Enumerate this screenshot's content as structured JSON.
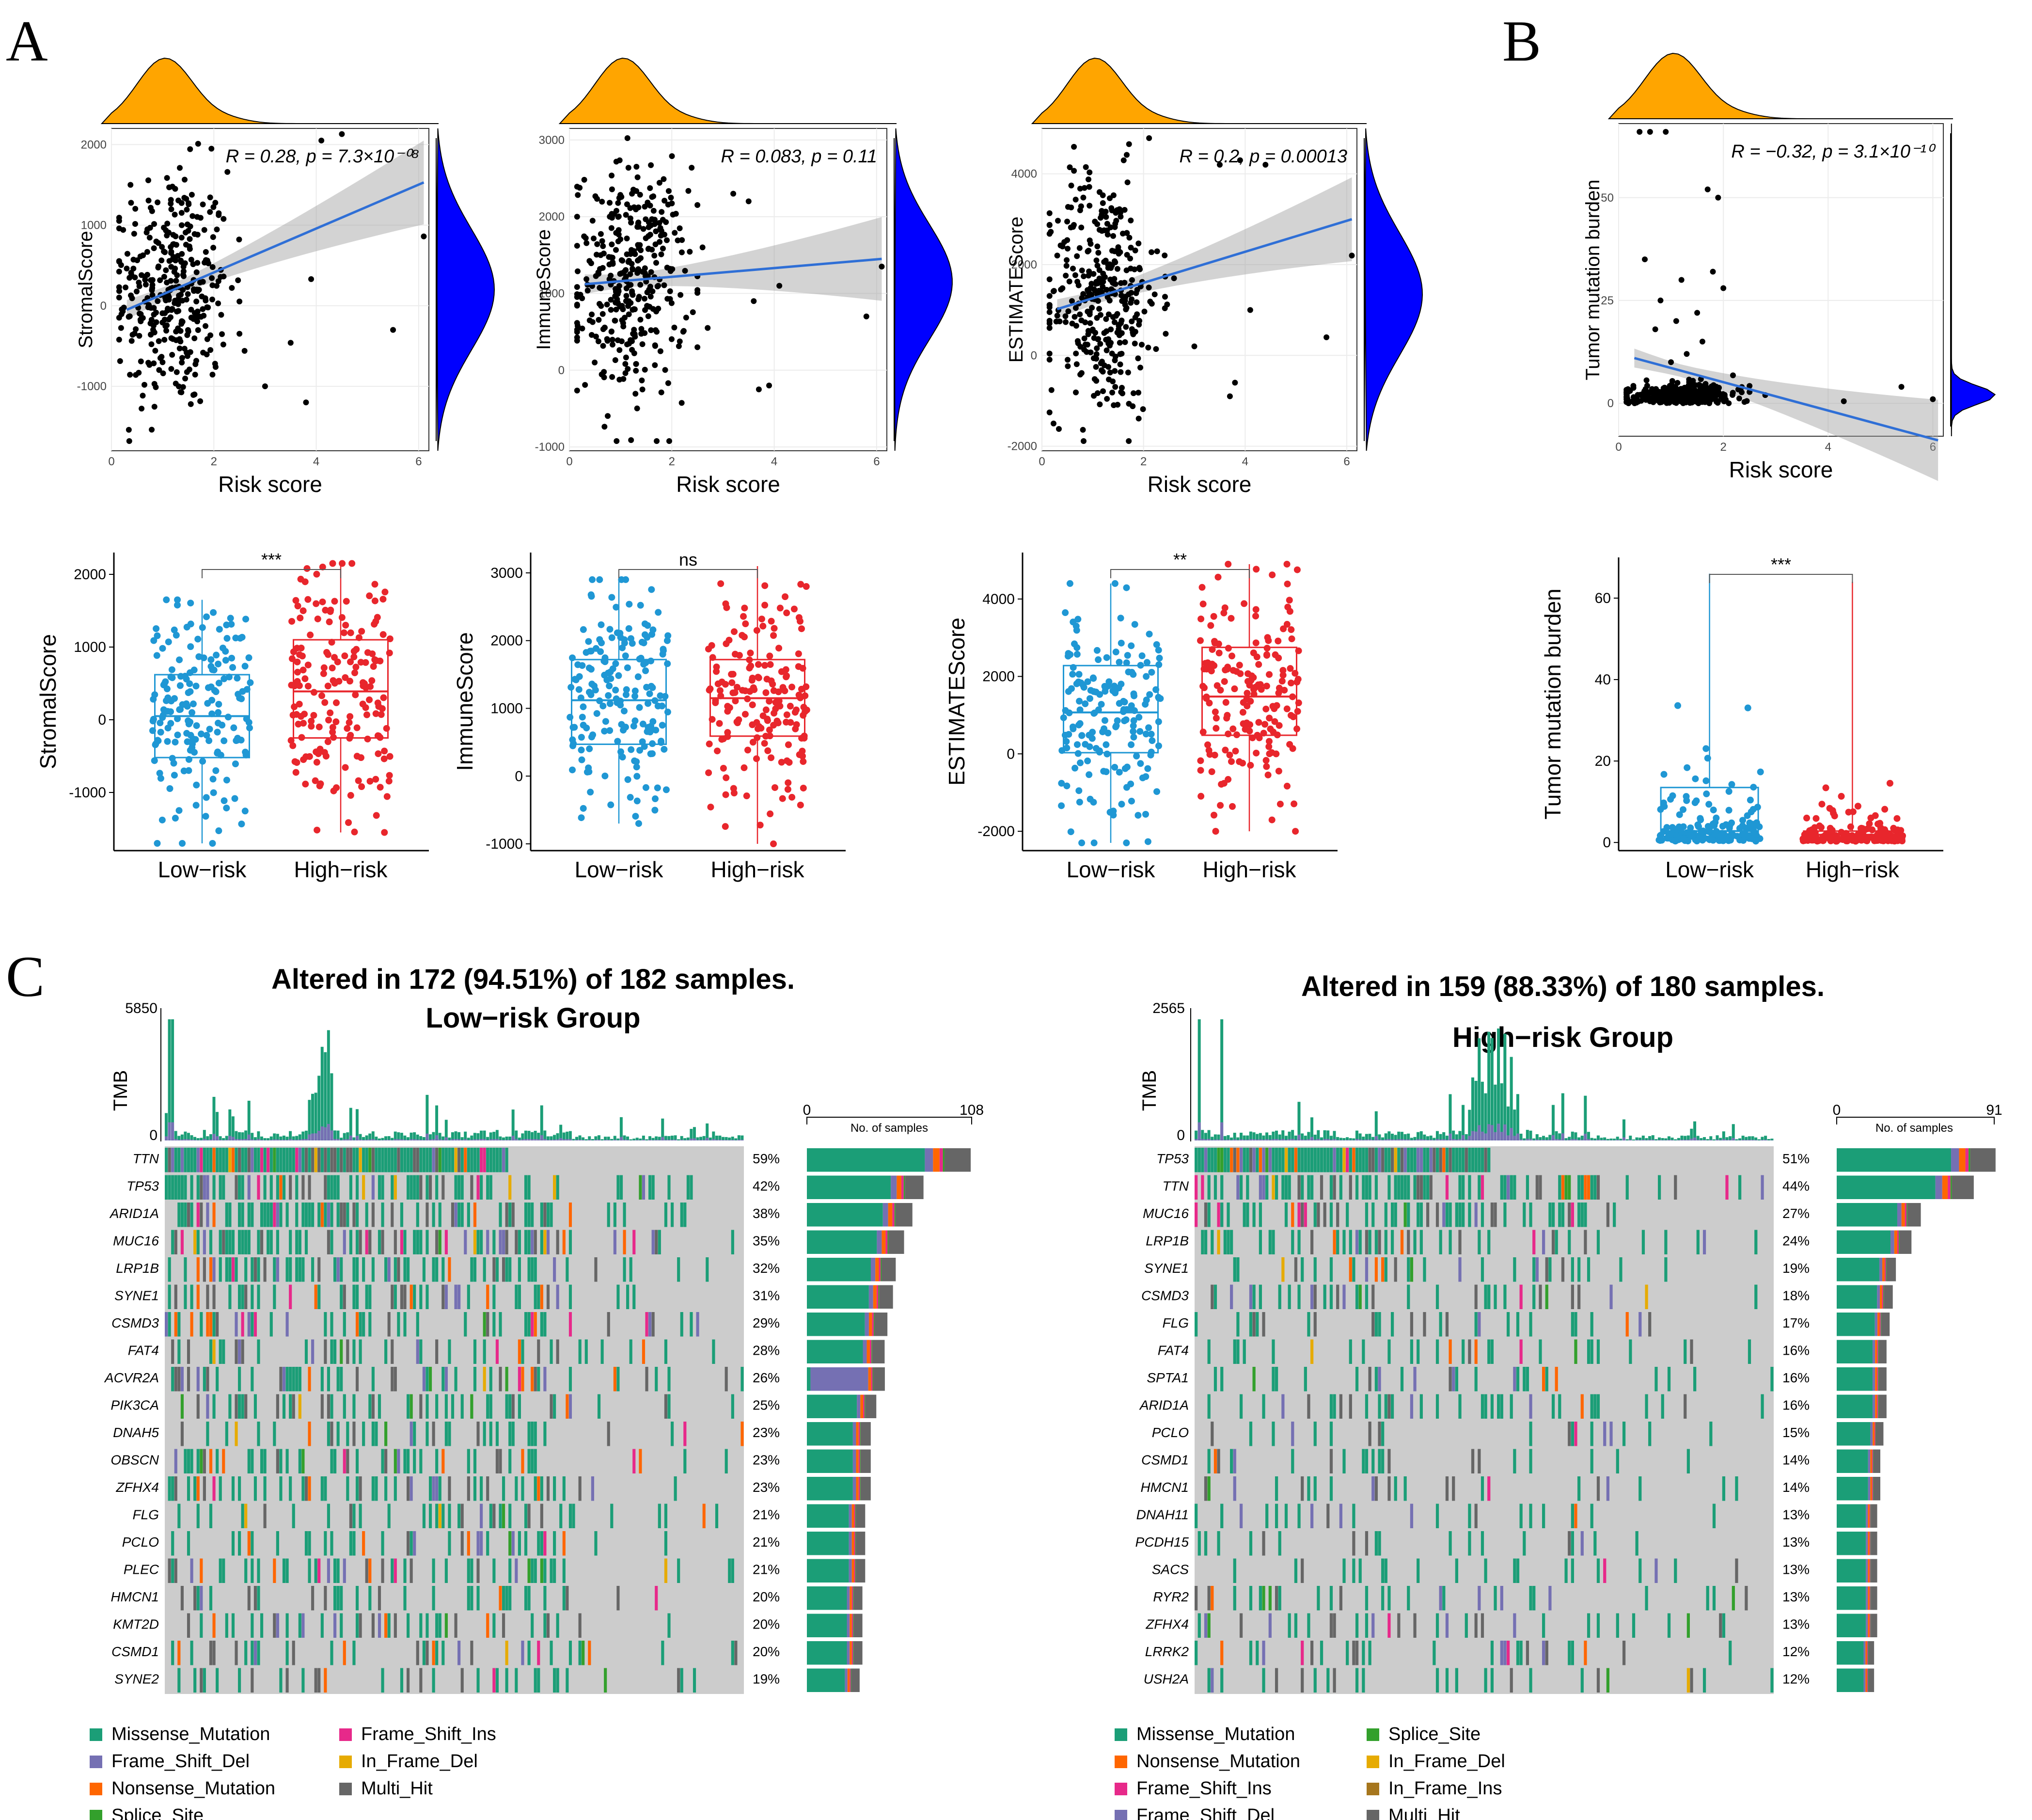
{
  "panel_labels": {
    "a": "A",
    "b": "B",
    "c": "C"
  },
  "scatter_axis_xlabel": "Risk score",
  "box_categories": [
    "Low−risk",
    "High−risk"
  ],
  "oncoplot": {
    "low_title": "Altered in 172 (94.51%) of 182 samples.",
    "low_subtitle": "Low−risk Group",
    "high_title": "Altered in 159 (88.33%) of 180 samples.",
    "high_subtitle": "High−risk  Group",
    "tmb_label": "TMB",
    "samples_label": "No. of samples",
    "low_tmb_max": "5850",
    "high_tmb_max": "2565",
    "zero": "0",
    "low_samples_max": "108",
    "high_samples_max": "91"
  },
  "colors": {
    "Missense_Mutation": "#1b9e77",
    "Frame_Shift_Del": "#7570b3",
    "Nonsense_Mutation": "#ff6600",
    "Splice_Site": "#33a02c",
    "Frame_Shift_Ins": "#e7298a",
    "In_Frame_Del": "#e6ab02",
    "In_Frame_Ins": "#a6761d",
    "Multi_Hit": "#666666",
    "low": "#1f97d4",
    "high": "#e8262c",
    "density_top": "#ffa500",
    "density_right": "#0000ff",
    "fit": "#2f6fd6"
  },
  "legend_low": [
    "Missense_Mutation",
    "Frame_Shift_Ins",
    "Frame_Shift_Del",
    "In_Frame_Del",
    "Nonsense_Mutation",
    "Multi_Hit",
    "Splice_Site"
  ],
  "legend_high": [
    "Missense_Mutation",
    "Splice_Site",
    "Nonsense_Mutation",
    "In_Frame_Del",
    "Frame_Shift_Ins",
    "In_Frame_Ins",
    "Frame_Shift_Del",
    "Multi_Hit"
  ],
  "chart_data": [
    {
      "type": "scatter",
      "id": "sc_stromal",
      "title": "",
      "xlabel": "Risk score",
      "ylabel": "StromalScore",
      "xlim": [
        0,
        6.2
      ],
      "ylim": [
        -1800,
        2200
      ],
      "xticks": [
        0,
        2,
        4,
        6
      ],
      "yticks": [
        -1000,
        0,
        1000,
        2000
      ],
      "fit_line": {
        "x": [
          0.3,
          6.1
        ],
        "y": [
          -50,
          1530
        ]
      },
      "annotation": "R = 0.28, p = 7.3×10⁻⁰⁸",
      "cluster": {
        "x_mean": 1.2,
        "x_sd": 0.55,
        "y_mean": 200,
        "y_sd": 750,
        "n": 360
      },
      "outliers": [
        [
          2.6,
          -560
        ],
        [
          3.5,
          -460
        ],
        [
          3.9,
          330
        ],
        [
          4.1,
          2050
        ],
        [
          4.5,
          2130
        ],
        [
          5.5,
          -300
        ],
        [
          6.1,
          860
        ],
        [
          3.0,
          -1000
        ],
        [
          3.8,
          -1200
        ]
      ]
    },
    {
      "type": "scatter",
      "id": "sc_immune",
      "title": "",
      "xlabel": "Risk score",
      "ylabel": "ImmuneScore",
      "xlim": [
        0,
        6.2
      ],
      "ylim": [
        -1050,
        3150
      ],
      "xticks": [
        0,
        2,
        4,
        6
      ],
      "yticks": [
        -1000,
        0,
        1000,
        2000,
        3000
      ],
      "fit_line": {
        "x": [
          0.3,
          6.1
        ],
        "y": [
          1120,
          1450
        ]
      },
      "annotation": "R = 0.083, p = 0.11",
      "cluster": {
        "x_mean": 1.2,
        "x_sd": 0.55,
        "y_mean": 1150,
        "y_sd": 750,
        "n": 360
      },
      "outliers": [
        [
          2.6,
          1600
        ],
        [
          3.2,
          2300
        ],
        [
          3.5,
          2200
        ],
        [
          3.6,
          900
        ],
        [
          3.7,
          -250
        ],
        [
          3.9,
          -200
        ],
        [
          4.1,
          1100
        ],
        [
          5.8,
          700
        ],
        [
          6.1,
          1350
        ],
        [
          2.7,
          550
        ]
      ]
    },
    {
      "type": "scatter",
      "id": "sc_estimate",
      "title": "",
      "xlabel": "Risk score",
      "ylabel": "ESTIMATEScore",
      "xlim": [
        0,
        6.2
      ],
      "ylim": [
        -2100,
        5000
      ],
      "xticks": [
        0,
        2,
        4,
        6
      ],
      "yticks": [
        -2000,
        0,
        2000,
        4000
      ],
      "fit_line": {
        "x": [
          0.3,
          6.1
        ],
        "y": [
          1020,
          3000
        ]
      },
      "annotation": "R = 0.2, p = 0.00013",
      "cluster": {
        "x_mean": 1.2,
        "x_sd": 0.55,
        "y_mean": 1350,
        "y_sd": 1350,
        "n": 360
      },
      "outliers": [
        [
          2.6,
          1700
        ],
        [
          3.0,
          200
        ],
        [
          3.5,
          4200
        ],
        [
          3.7,
          -900
        ],
        [
          3.9,
          4300
        ],
        [
          4.1,
          1000
        ],
        [
          4.4,
          4200
        ],
        [
          5.6,
          400
        ],
        [
          6.1,
          2200
        ],
        [
          3.8,
          -600
        ]
      ]
    },
    {
      "type": "scatter",
      "id": "sc_tmb",
      "title": "",
      "xlabel": "Risk score",
      "ylabel": "Tumor mutation burden",
      "xlim": [
        0,
        6.2
      ],
      "ylim": [
        -8,
        68
      ],
      "xticks": [
        0,
        2,
        4,
        6
      ],
      "yticks": [
        0,
        25,
        50
      ],
      "fit_line": {
        "x": [
          0.3,
          6.1
        ],
        "y": [
          11,
          -9
        ]
      },
      "annotation": "R = −0.32, p = 3.1×10⁻¹⁰",
      "cluster": {
        "x_mean": 1.2,
        "x_sd": 0.5,
        "y_mean": 2,
        "y_sd": 1.5,
        "n": 320
      },
      "outliers": [
        [
          0.4,
          66
        ],
        [
          0.6,
          66
        ],
        [
          0.9,
          66
        ],
        [
          1.7,
          52
        ],
        [
          1.9,
          50
        ],
        [
          1.8,
          32
        ],
        [
          1.2,
          30
        ],
        [
          0.5,
          35
        ],
        [
          2.0,
          28
        ],
        [
          1.5,
          22
        ],
        [
          0.8,
          25
        ],
        [
          1.1,
          20
        ],
        [
          1.6,
          15
        ],
        [
          0.7,
          18
        ],
        [
          1.3,
          12
        ],
        [
          1.0,
          10
        ],
        [
          5.4,
          4
        ],
        [
          6.0,
          1
        ],
        [
          4.3,
          0.5
        ],
        [
          2.8,
          2
        ]
      ]
    },
    {
      "type": "box",
      "id": "bx_stromal",
      "ylabel": "StromalScore",
      "categories": [
        "Low−risk",
        "High−risk"
      ],
      "ylim": [
        -1800,
        2300
      ],
      "yticks": [
        -1000,
        0,
        1000,
        2000
      ],
      "significance": "***",
      "groups": [
        {
          "min": -1700,
          "q1": -520,
          "median": 50,
          "q3": 620,
          "max": 1650
        },
        {
          "min": -1550,
          "q1": -250,
          "median": 390,
          "q3": 1100,
          "max": 2150
        }
      ],
      "jitter": [
        {
          "mean": 50,
          "sd": 800
        },
        {
          "mean": 400,
          "sd": 850
        }
      ]
    },
    {
      "type": "box",
      "id": "bx_immune",
      "ylabel": "ImmuneScore",
      "categories": [
        "Low−risk",
        "High−risk"
      ],
      "ylim": [
        -1100,
        3300
      ],
      "yticks": [
        -1000,
        0,
        1000,
        2000,
        3000
      ],
      "significance": "ns",
      "groups": [
        {
          "min": -700,
          "q1": 470,
          "median": 1120,
          "q3": 1720,
          "max": 2900
        },
        {
          "min": -1000,
          "q1": 590,
          "median": 1150,
          "q3": 1720,
          "max": 3100
        }
      ],
      "jitter": [
        {
          "mean": 1100,
          "sd": 850
        },
        {
          "mean": 1150,
          "sd": 850
        }
      ]
    },
    {
      "type": "box",
      "id": "bx_estimate",
      "ylabel": "ESTIMATEScore",
      "categories": [
        "Low−risk",
        "High−risk"
      ],
      "ylim": [
        -2500,
        5200
      ],
      "yticks": [
        -2000,
        0,
        2000,
        4000
      ],
      "significance": "**",
      "groups": [
        {
          "min": -2300,
          "q1": 30,
          "median": 1070,
          "q3": 2280,
          "max": 4400
        },
        {
          "min": -2000,
          "q1": 480,
          "median": 1480,
          "q3": 2750,
          "max": 4900
        }
      ],
      "jitter": [
        {
          "mean": 1100,
          "sd": 1500
        },
        {
          "mean": 1500,
          "sd": 1500
        }
      ]
    },
    {
      "type": "box",
      "id": "bx_tmb",
      "ylabel": "Tumor mutation burden",
      "categories": [
        "Low−risk",
        "High−risk"
      ],
      "ylim": [
        -2,
        70
      ],
      "yticks": [
        0,
        20,
        40,
        60
      ],
      "significance": "***",
      "groups": [
        {
          "min": 0,
          "q1": 1.5,
          "median": 2.8,
          "q3": 13.5,
          "max": 66
        },
        {
          "min": 0,
          "q1": 1.2,
          "median": 1.9,
          "q3": 2.8,
          "max": 64
        }
      ],
      "jitter": [
        {
          "mean": 6,
          "sd": 9
        },
        {
          "mean": 2.5,
          "sd": 5
        }
      ]
    },
    {
      "type": "table",
      "id": "onco_low",
      "title": "Altered in 172 (94.51%) of 182 samples.",
      "subtitle": "Low−risk Group",
      "samples": 182,
      "tmb_max": 5850,
      "bar_max": 108,
      "genes": [
        "TTN",
        "TP53",
        "ARID1A",
        "MUC16",
        "LRP1B",
        "SYNE1",
        "CSMD3",
        "FAT4",
        "ACVR2A",
        "PIK3CA",
        "DNAH5",
        "OBSCN",
        "ZFHX4",
        "FLG",
        "PCLO",
        "PLEC",
        "HMCN1",
        "KMT2D",
        "CSMD1",
        "SYNE2"
      ],
      "percents": [
        "59%",
        "42%",
        "38%",
        "35%",
        "32%",
        "31%",
        "29%",
        "28%",
        "26%",
        "25%",
        "23%",
        "23%",
        "23%",
        "21%",
        "21%",
        "21%",
        "20%",
        "20%",
        "20%",
        "19%"
      ]
    },
    {
      "type": "table",
      "id": "onco_high",
      "title": "Altered in 159 (88.33%) of 180 samples.",
      "subtitle": "High−risk  Group",
      "samples": 180,
      "tmb_max": 2565,
      "bar_max": 91,
      "genes": [
        "TP53",
        "TTN",
        "MUC16",
        "LRP1B",
        "SYNE1",
        "CSMD3",
        "FLG",
        "FAT4",
        "SPTA1",
        "ARID1A",
        "PCLO",
        "CSMD1",
        "HMCN1",
        "DNAH11",
        "PCDH15",
        "SACS",
        "RYR2",
        "ZFHX4",
        "LRRK2",
        "USH2A"
      ],
      "percents": [
        "51%",
        "44%",
        "27%",
        "24%",
        "19%",
        "18%",
        "17%",
        "16%",
        "16%",
        "16%",
        "15%",
        "14%",
        "14%",
        "13%",
        "13%",
        "13%",
        "13%",
        "13%",
        "12%",
        "12%"
      ]
    }
  ]
}
